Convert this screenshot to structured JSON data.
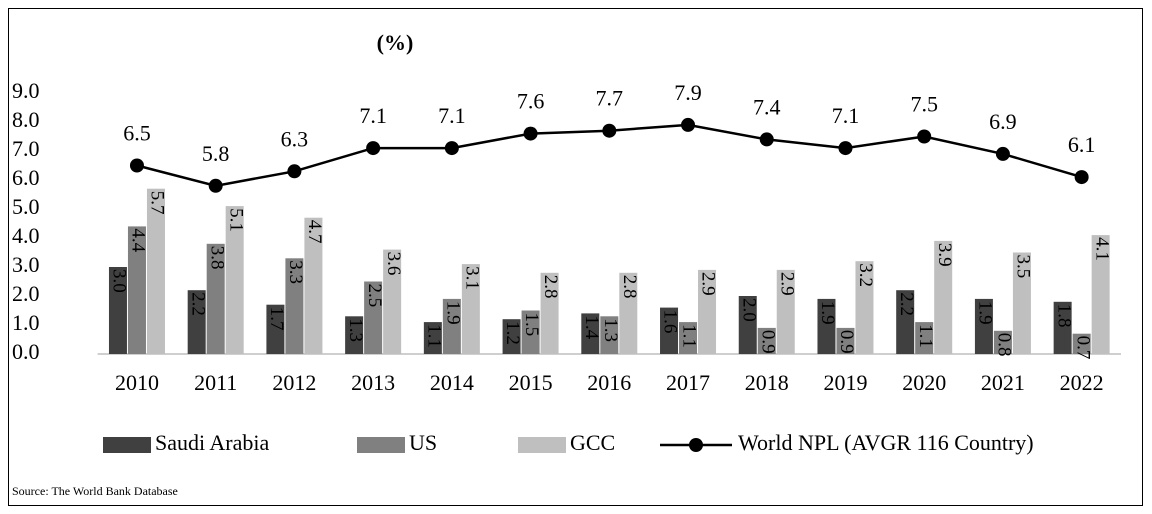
{
  "chart_data": {
    "type": "bar_line",
    "title": "(%)",
    "source": "Source: The World Bank Database",
    "categories": [
      "2010",
      "2011",
      "2012",
      "2013",
      "2014",
      "2015",
      "2016",
      "2017",
      "2018",
      "2019",
      "2020",
      "2021",
      "2022"
    ],
    "series": [
      {
        "name": "Saudi Arabia",
        "type": "bar",
        "color": "#404040",
        "values": [
          3.0,
          2.2,
          1.7,
          1.3,
          1.1,
          1.2,
          1.4,
          1.6,
          2.0,
          1.9,
          2.2,
          1.9,
          1.8
        ],
        "value_labels": [
          "3.0",
          "2.2",
          "1.7",
          "1.3",
          "1.1",
          "1.2",
          "1.4",
          "1.6",
          "2.0",
          "1.9",
          "2.2",
          "1.9",
          "1.8"
        ]
      },
      {
        "name": "US",
        "type": "bar",
        "color": "#808080",
        "values": [
          4.4,
          3.8,
          3.3,
          2.5,
          1.9,
          1.5,
          1.3,
          1.1,
          0.9,
          0.9,
          1.1,
          0.8,
          0.7
        ],
        "value_labels": [
          "4.4",
          "3.8",
          "3.3",
          "2.5",
          "1.9",
          "1.5",
          "1.3",
          "1.1",
          "0.9",
          "0.9",
          "1.1",
          "0.8",
          "0.7"
        ]
      },
      {
        "name": "GCC",
        "type": "bar",
        "color": "#bfbfbf",
        "values": [
          5.7,
          5.1,
          4.7,
          3.6,
          3.1,
          2.8,
          2.8,
          2.9,
          2.9,
          3.2,
          3.9,
          3.5,
          4.1
        ],
        "value_labels": [
          "5.7",
          "5.1",
          "4.7",
          "3.6",
          "3.1",
          "2.8",
          "2.8",
          "2.9",
          "2.9",
          "3.2",
          "3.9",
          "3.5",
          "4.1"
        ]
      },
      {
        "name": "World NPL (AVGR 116 Country)",
        "type": "line",
        "color": "#000000",
        "values": [
          6.5,
          5.8,
          6.3,
          7.1,
          7.1,
          7.6,
          7.7,
          7.9,
          7.4,
          7.1,
          7.5,
          6.9,
          6.1
        ]
      }
    ],
    "ylim": [
      0,
      9
    ],
    "yticks": [
      {
        "value": 0,
        "label": "0.0"
      },
      {
        "value": 1,
        "label": "1.0"
      },
      {
        "value": 2,
        "label": "2.0"
      },
      {
        "value": 3,
        "label": "3.0"
      },
      {
        "value": 4,
        "label": "4.0"
      },
      {
        "value": 5,
        "label": "5.0"
      },
      {
        "value": 6,
        "label": "6.0"
      },
      {
        "value": 7,
        "label": "7.0"
      },
      {
        "value": 8,
        "label": "8.0"
      },
      {
        "value": 9,
        "label": "9.0"
      }
    ],
    "legend": "bottom"
  }
}
